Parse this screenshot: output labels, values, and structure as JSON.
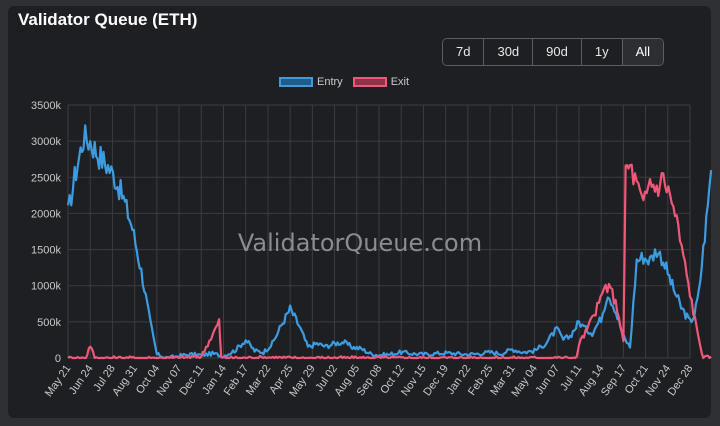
{
  "header": {
    "title": "Validator Queue (ETH)"
  },
  "range_buttons": [
    "7d",
    "30d",
    "90d",
    "1y",
    "All"
  ],
  "active_range": "All",
  "watermark": "ValidatorQueue.com",
  "colors": {
    "entry": "#3d9be0",
    "exit": "#f0587a",
    "background": "#1e1f22",
    "grid": "#3a3c40"
  },
  "chart_data": {
    "type": "line",
    "title": "Validator Queue (ETH)",
    "legend": {
      "position": "top",
      "entries": [
        "Entry",
        "Exit"
      ]
    },
    "grid": true,
    "ylim": [
      0,
      3500000
    ],
    "y_ticks": [
      "0",
      "500k",
      "1000k",
      "1500k",
      "2000k",
      "2500k",
      "3000k",
      "3500k"
    ],
    "x_ticks": [
      "May 21",
      "Jun 24",
      "Jul 28",
      "Aug 31",
      "Oct 04",
      "Nov 07",
      "Dec 11",
      "Jan 14",
      "Feb 17",
      "Mar 22",
      "Apr 25",
      "May 29",
      "Jul 02",
      "Aug 05",
      "Sep 08",
      "Oct 12",
      "Nov 15",
      "Dec 19",
      "Jan 22",
      "Feb 25",
      "Mar 31",
      "May 04",
      "Jun 07",
      "Jul 11",
      "Aug 14",
      "Sep 17",
      "Oct 21",
      "Nov 24",
      "Dec 28"
    ],
    "series": [
      {
        "name": "Entry",
        "values": [
          [
            0,
            2000000
          ],
          [
            0.3,
            2500000
          ],
          [
            0.7,
            3050000
          ],
          [
            1.0,
            3000000
          ],
          [
            1.4,
            2800000
          ],
          [
            1.8,
            2650000
          ],
          [
            2.1,
            2500000
          ],
          [
            2.5,
            2200000
          ],
          [
            2.9,
            1800000
          ],
          [
            3.3,
            1200000
          ],
          [
            3.7,
            500000
          ],
          [
            4.0,
            50000
          ],
          [
            4.5,
            0
          ],
          [
            5.0,
            30000
          ],
          [
            5.5,
            50000
          ],
          [
            6.0,
            40000
          ],
          [
            6.5,
            60000
          ],
          [
            7.0,
            30000
          ],
          [
            7.5,
            100000
          ],
          [
            8.0,
            250000
          ],
          [
            8.4,
            100000
          ],
          [
            8.8,
            80000
          ],
          [
            9.2,
            200000
          ],
          [
            9.6,
            450000
          ],
          [
            10.0,
            680000
          ],
          [
            10.4,
            450000
          ],
          [
            10.8,
            150000
          ],
          [
            11.2,
            200000
          ],
          [
            11.6,
            160000
          ],
          [
            12.0,
            200000
          ],
          [
            12.4,
            220000
          ],
          [
            12.8,
            150000
          ],
          [
            13.2,
            130000
          ],
          [
            13.6,
            60000
          ],
          [
            14.0,
            40000
          ],
          [
            14.5,
            50000
          ],
          [
            15.0,
            80000
          ],
          [
            15.5,
            60000
          ],
          [
            16.0,
            50000
          ],
          [
            16.5,
            60000
          ],
          [
            17.0,
            70000
          ],
          [
            17.5,
            60000
          ],
          [
            18.0,
            50000
          ],
          [
            18.5,
            60000
          ],
          [
            19.0,
            80000
          ],
          [
            19.5,
            60000
          ],
          [
            20.0,
            120000
          ],
          [
            20.5,
            80000
          ],
          [
            21.0,
            100000
          ],
          [
            21.5,
            200000
          ],
          [
            22.0,
            400000
          ],
          [
            22.3,
            250000
          ],
          [
            22.6,
            300000
          ],
          [
            23.0,
            500000
          ],
          [
            23.3,
            400000
          ],
          [
            23.6,
            350000
          ],
          [
            24.0,
            550000
          ],
          [
            24.3,
            900000
          ],
          [
            24.6,
            700000
          ],
          [
            25.0,
            300000
          ],
          [
            25.3,
            150000
          ],
          [
            25.6,
            1350000
          ],
          [
            25.9,
            1400000
          ],
          [
            26.2,
            1350000
          ],
          [
            26.5,
            1500000
          ],
          [
            26.8,
            1350000
          ],
          [
            27.2,
            1000000
          ],
          [
            27.6,
            700000
          ],
          [
            28.0,
            500000
          ],
          [
            28.2,
            600000
          ],
          [
            28.4,
            900000
          ],
          [
            28.6,
            1500000
          ],
          [
            28.8,
            2100000
          ],
          [
            28.95,
            2600000
          ]
        ]
      },
      {
        "name": "Exit",
        "values": [
          [
            0,
            0
          ],
          [
            0.8,
            0
          ],
          [
            1.0,
            180000
          ],
          [
            1.2,
            0
          ],
          [
            2.0,
            0
          ],
          [
            3.0,
            0
          ],
          [
            4.0,
            0
          ],
          [
            5.0,
            0
          ],
          [
            6.0,
            20000
          ],
          [
            6.8,
            500000
          ],
          [
            6.9,
            0
          ],
          [
            8.0,
            0
          ],
          [
            9.0,
            10000
          ],
          [
            10.0,
            0
          ],
          [
            11.0,
            0
          ],
          [
            12.0,
            0
          ],
          [
            13.0,
            0
          ],
          [
            14.0,
            0
          ],
          [
            15.0,
            0
          ],
          [
            16.0,
            0
          ],
          [
            17.0,
            0
          ],
          [
            18.0,
            0
          ],
          [
            19.0,
            0
          ],
          [
            20.0,
            0
          ],
          [
            21.0,
            0
          ],
          [
            22.0,
            0
          ],
          [
            22.9,
            0
          ],
          [
            23.0,
            200000
          ],
          [
            23.3,
            350000
          ],
          [
            23.6,
            550000
          ],
          [
            23.9,
            750000
          ],
          [
            24.2,
            1000000
          ],
          [
            24.5,
            900000
          ],
          [
            24.8,
            600000
          ],
          [
            25.0,
            200000
          ],
          [
            25.1,
            2600000
          ],
          [
            25.3,
            2650000
          ],
          [
            25.6,
            2400000
          ],
          [
            25.9,
            2100000
          ],
          [
            26.2,
            2450000
          ],
          [
            26.5,
            2350000
          ],
          [
            26.8,
            2500000
          ],
          [
            27.1,
            2250000
          ],
          [
            27.4,
            1900000
          ],
          [
            27.7,
            1400000
          ],
          [
            28.0,
            900000
          ],
          [
            28.3,
            400000
          ],
          [
            28.6,
            0
          ],
          [
            28.95,
            20000
          ]
        ]
      }
    ]
  }
}
